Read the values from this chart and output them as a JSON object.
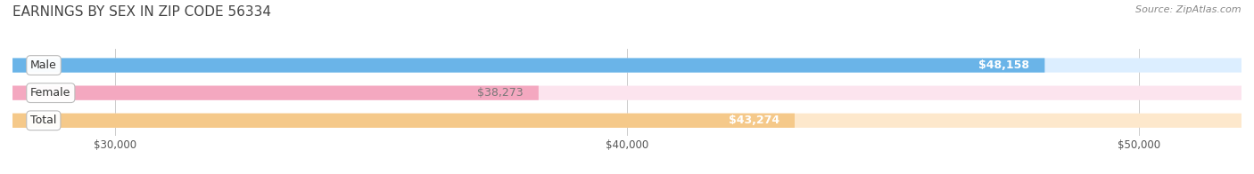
{
  "title": "EARNINGS BY SEX IN ZIP CODE 56334",
  "source": "Source: ZipAtlas.com",
  "categories": [
    "Male",
    "Female",
    "Total"
  ],
  "values": [
    48158,
    38273,
    43274
  ],
  "bar_colors": [
    "#6ab4e8",
    "#f4a8c0",
    "#f5c98a"
  ],
  "bar_bg_colors": [
    "#dceeff",
    "#fce4ee",
    "#fde8cc"
  ],
  "value_labels": [
    "$48,158",
    "$38,273",
    "$43,274"
  ],
  "xlim": [
    28000,
    52000
  ],
  "xticks": [
    30000,
    40000,
    50000
  ],
  "xtick_labels": [
    "$30,000",
    "$40,000",
    "$50,000"
  ],
  "title_fontsize": 11,
  "bar_label_fontsize": 9,
  "value_label_fontsize": 9,
  "source_fontsize": 8,
  "bg_color": "#f0f0f0",
  "fig_bg_color": "#ffffff"
}
